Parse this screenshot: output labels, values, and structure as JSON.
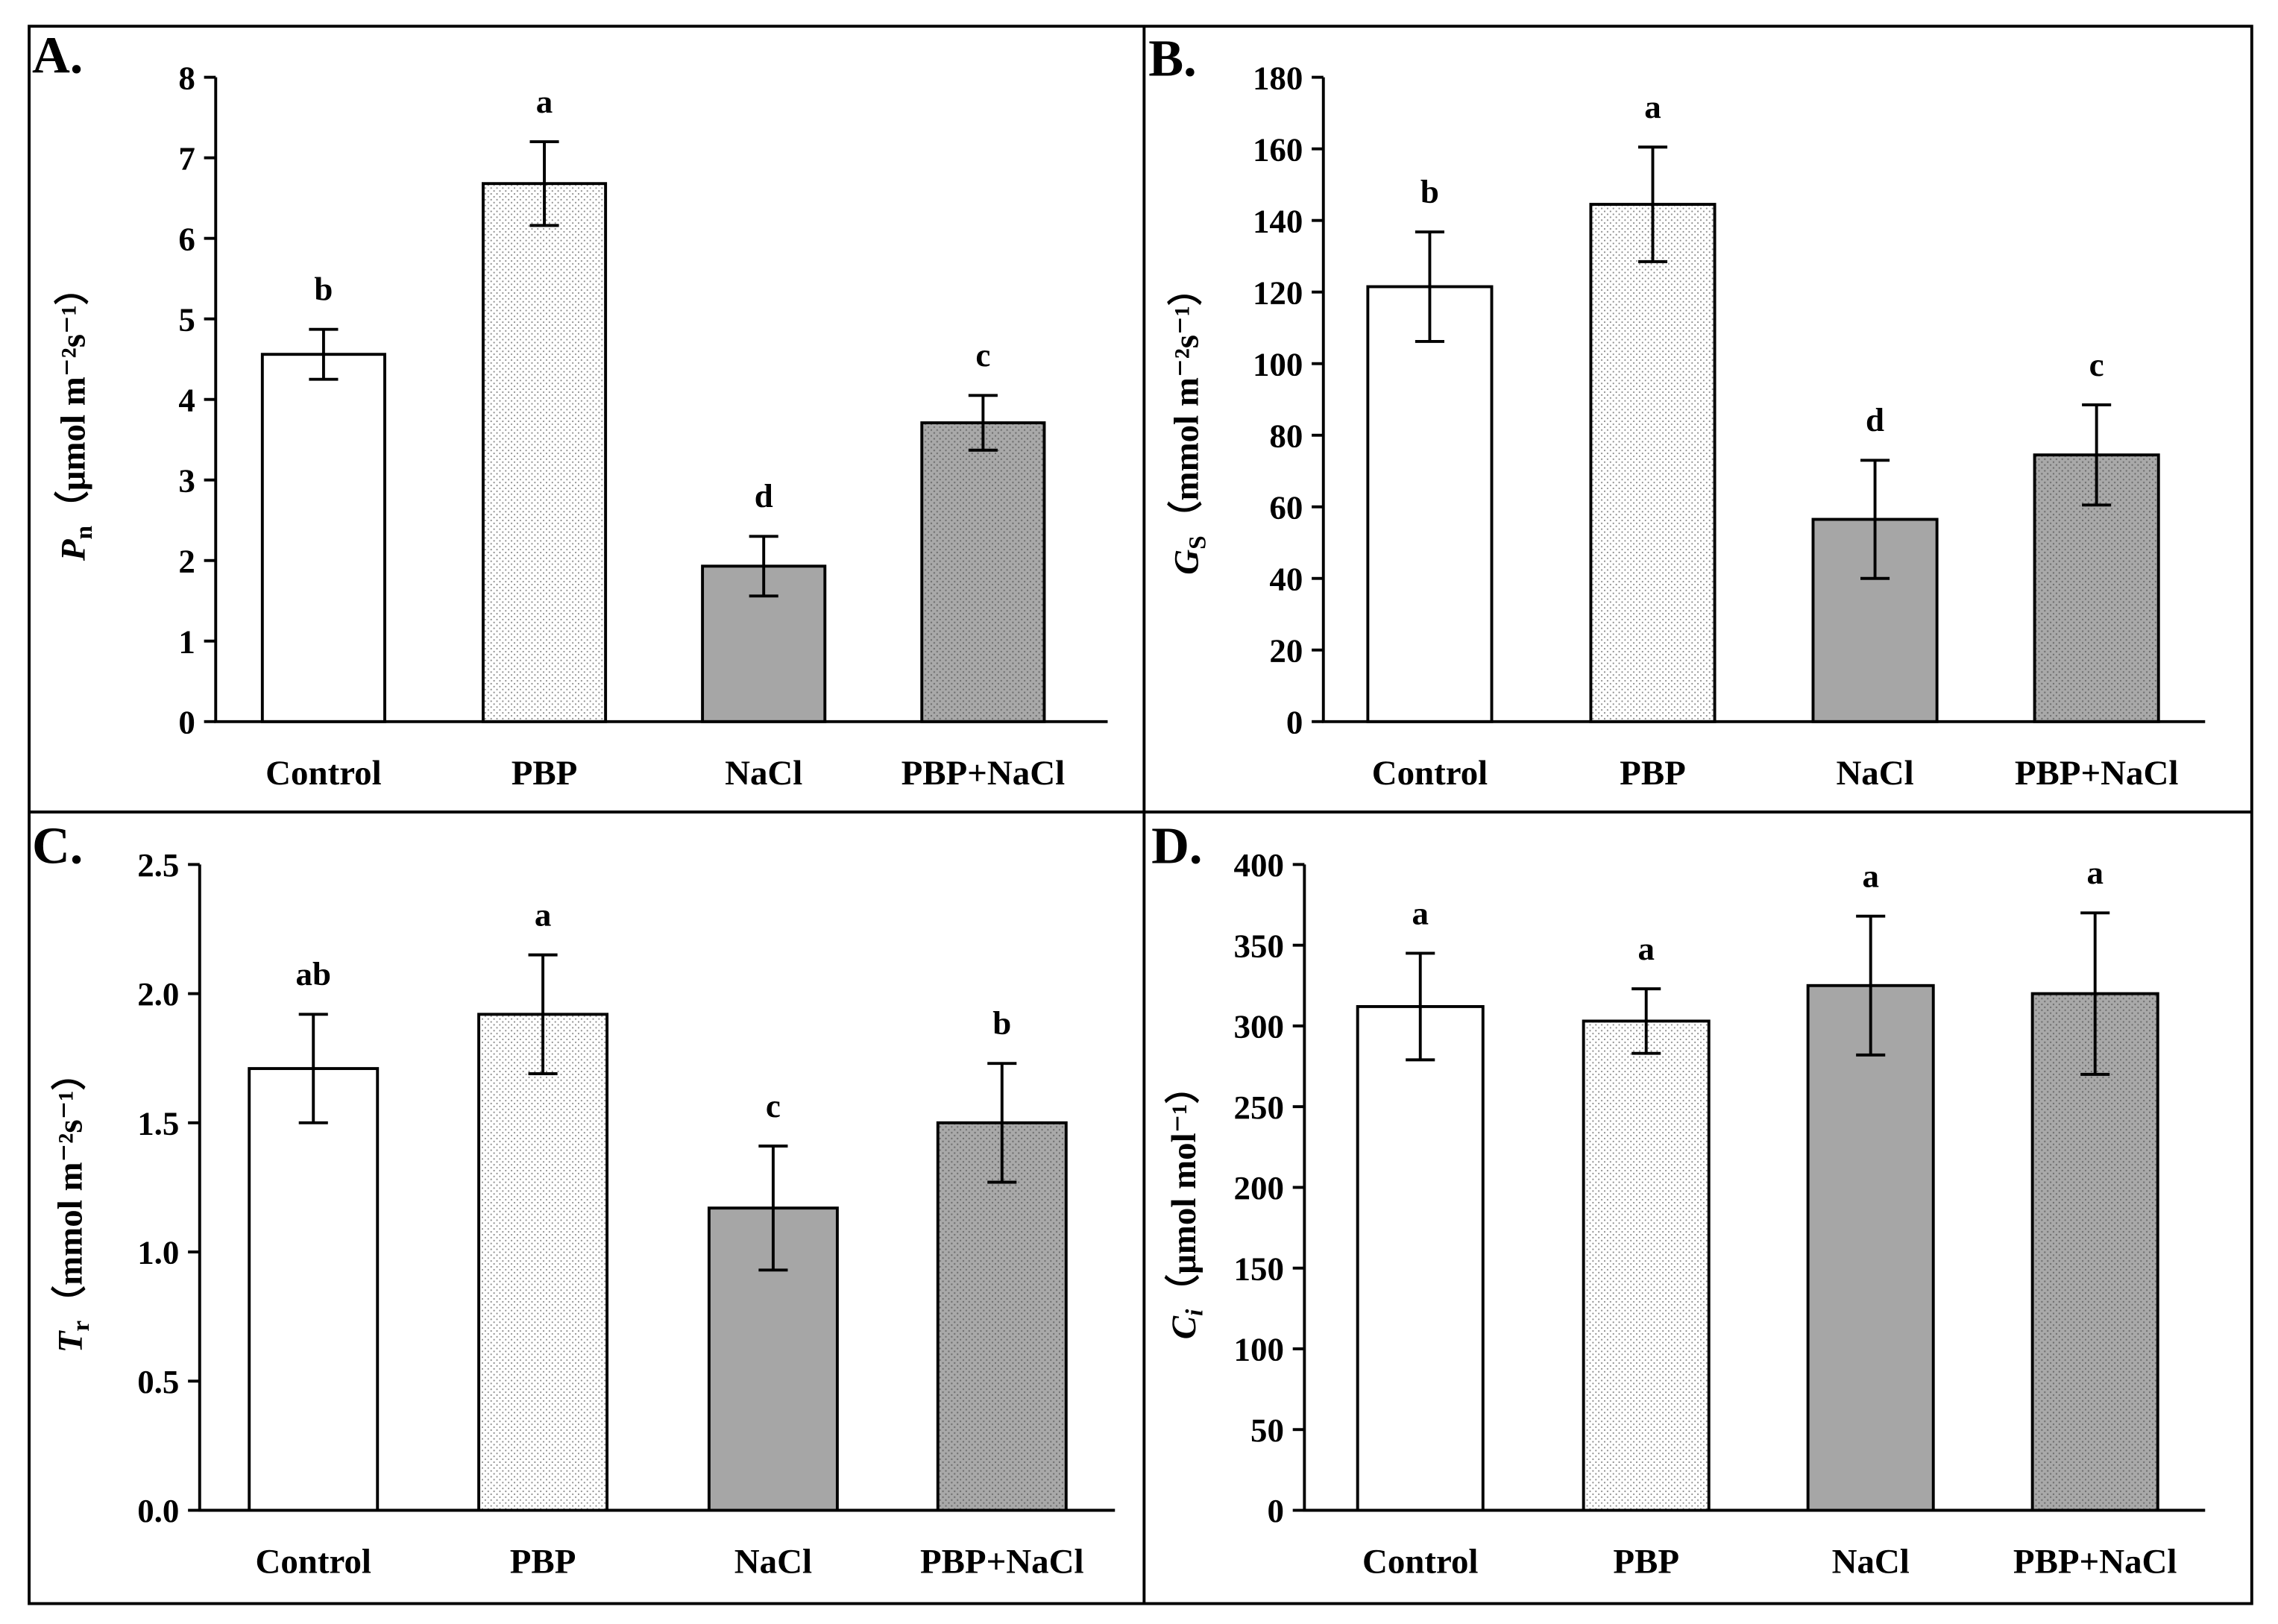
{
  "colors": {
    "background": "#ffffff",
    "frame": "#000000",
    "gray_bar": "#a6a6a6",
    "dot_light": "#8a8a8a",
    "dot_dark": "#6f6f6f"
  },
  "chart_data": [
    {
      "panel": "A.",
      "type": "bar",
      "categories": [
        "Control",
        "PBP",
        "NaCl",
        "PBP+NaCl"
      ],
      "values": [
        4.56,
        6.68,
        1.93,
        3.71
      ],
      "errors": [
        0.31,
        0.52,
        0.37,
        0.34
      ],
      "letters": [
        "b",
        "a",
        "d",
        "c"
      ],
      "ylabel": {
        "symbol": "P",
        "sub": "n",
        "unit": "（μmol m⁻²s⁻¹）"
      },
      "xlabel": "",
      "ylim": [
        0,
        8
      ],
      "yticks": [
        "0",
        "1",
        "2",
        "3",
        "4",
        "5",
        "6",
        "7",
        "8"
      ]
    },
    {
      "panel": "B.",
      "type": "bar",
      "categories": [
        "Control",
        "PBP",
        "NaCl",
        "PBP+NaCl"
      ],
      "values": [
        121.5,
        144.5,
        56.5,
        74.5
      ],
      "errors": [
        15.3,
        16.0,
        16.5,
        14.0
      ],
      "letters": [
        "b",
        "a",
        "d",
        "c"
      ],
      "ylabel": {
        "symbol": "G",
        "sub": "S",
        "unit": "（mmol m⁻²s⁻¹）"
      },
      "xlabel": "",
      "ylim": [
        0,
        180
      ],
      "yticks": [
        "0",
        "20",
        "40",
        "60",
        "80",
        "100",
        "120",
        "140",
        "160",
        "180"
      ]
    },
    {
      "panel": "C.",
      "type": "bar",
      "categories": [
        "Control",
        "PBP",
        "NaCl",
        "PBP+NaCl"
      ],
      "values": [
        1.71,
        1.92,
        1.17,
        1.5
      ],
      "errors": [
        0.21,
        0.23,
        0.24,
        0.23
      ],
      "letters": [
        "ab",
        "a",
        "c",
        "b"
      ],
      "ylabel": {
        "symbol": "T",
        "sub": "r",
        "unit": "（mmol m⁻²s⁻¹）"
      },
      "xlabel": "",
      "ylim": [
        0,
        2.5
      ],
      "yticks": [
        "0.0",
        "0.5",
        "1.0",
        "1.5",
        "2.0",
        "2.5"
      ]
    },
    {
      "panel": "D.",
      "type": "bar",
      "categories": [
        "Control",
        "PBP",
        "NaCl",
        "PBP+NaCl"
      ],
      "values": [
        312,
        303,
        325,
        320
      ],
      "errors": [
        33,
        20,
        43,
        50
      ],
      "letters": [
        "a",
        "a",
        "a",
        "a"
      ],
      "ylabel": {
        "symbol": "C",
        "sub": "i",
        "unit": "（μmol mol⁻¹）"
      },
      "xlabel": "",
      "ylim": [
        0,
        400
      ],
      "yticks": [
        "0",
        "50",
        "100",
        "150",
        "200",
        "250",
        "300",
        "350",
        "400"
      ]
    }
  ]
}
